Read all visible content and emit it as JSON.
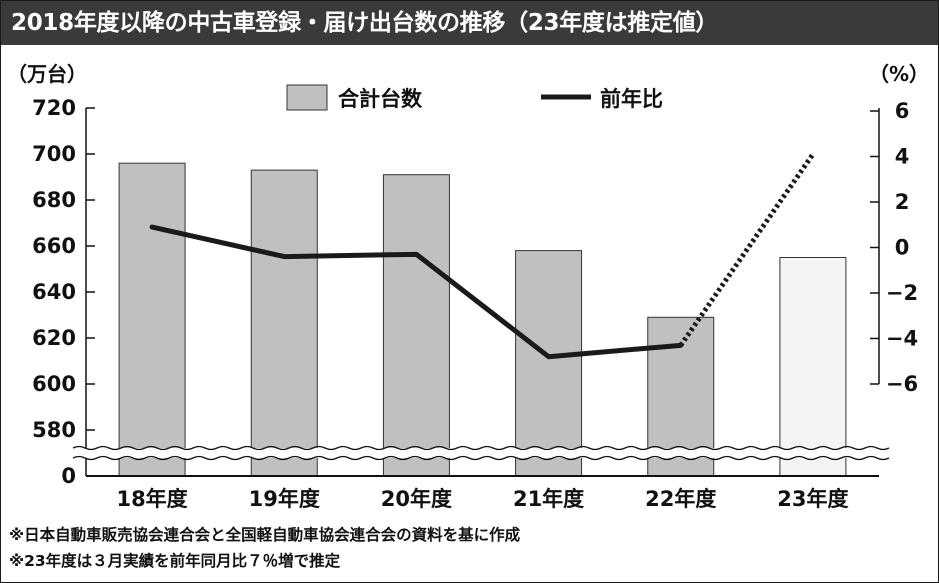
{
  "title": "2018年度以降の中古車登録・届け出台数の推移（23年度は推定値）",
  "chart_data": {
    "type": "bar+line",
    "categories": [
      "18年度",
      "19年度",
      "20年度",
      "21年度",
      "22年度",
      "23年度"
    ],
    "series": [
      {
        "name": "合計台数",
        "type": "bar",
        "axis": "left",
        "unit": "（万台）",
        "values": [
          696,
          693,
          691,
          658,
          629,
          655
        ],
        "estimated": [
          false,
          false,
          false,
          false,
          false,
          true
        ],
        "color": "#c0c0c0",
        "estimated_color": "#f4f4f4"
      },
      {
        "name": "前年比",
        "type": "line",
        "axis": "right",
        "unit": "（%）",
        "values": [
          0.9,
          -0.4,
          -0.3,
          -4.8,
          -4.3,
          4.1
        ],
        "estimated": [
          false,
          false,
          false,
          false,
          false,
          true
        ],
        "color": "#1a1a1a"
      }
    ],
    "left_axis": {
      "label": "（万台）",
      "ticks": [
        720,
        700,
        680,
        660,
        640,
        620,
        600,
        580,
        0
      ],
      "tick_labels": [
        "720",
        "700",
        "680",
        "660",
        "640",
        "620",
        "600",
        "580",
        "0"
      ],
      "ylim": [
        580,
        720
      ],
      "axis_break": true
    },
    "right_axis": {
      "label": "（%）",
      "ticks": [
        6,
        4,
        2,
        0,
        -2,
        -4,
        -6
      ],
      "tick_labels": [
        "6",
        "4",
        "2",
        "0",
        "−2",
        "−4",
        "−6"
      ],
      "ylim": [
        -6,
        6
      ]
    },
    "legend": {
      "placement": "top-center",
      "items": [
        "合計台数",
        "前年比"
      ]
    },
    "grid": false
  },
  "notes": [
    "※日本自動車販売協会連合会と全国軽自動車協会連合会の資料を基に作成",
    "※23年度は３月実績を前年同月比７％増で推定"
  ],
  "colors": {
    "title_bg": "#3a3a3a",
    "title_text": "#ffffff",
    "bar": "#c0c0c0",
    "bar_estimated": "#f4f4f4",
    "line": "#1a1a1a"
  }
}
